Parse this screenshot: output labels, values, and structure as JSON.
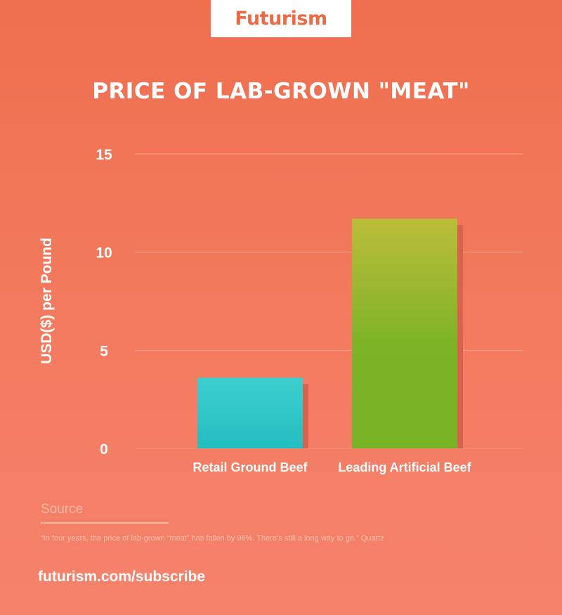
{
  "brand": {
    "logo_text": "Futurism"
  },
  "colors": {
    "accent": "#ee6a44",
    "bar_retail_top": "#3ccfd0",
    "bar_retail_bottom": "#25bdc0",
    "bar_artificial_top": "#bbbd3a",
    "bar_artificial_bottom": "#78b225",
    "shadow": "#d9624f",
    "grid": "#f6a591"
  },
  "chart_data": {
    "type": "bar",
    "title": "PRICE OF LAB-GROWN \"MEAT\"",
    "ylabel": "USD($) per Pound",
    "xlabel": "",
    "categories": [
      "Retail Ground Beef",
      "Leading Artificial Beef"
    ],
    "values": [
      3.6,
      11.7
    ],
    "ylim": [
      0,
      15
    ],
    "yticks": [
      0,
      5,
      10,
      15
    ],
    "grid": true,
    "legend": "none"
  },
  "source": {
    "label": "Source",
    "quote": "“In four years, the price of lab-grown “meat” has fallen by 96%. There’s still a long way to go.” Quartz"
  },
  "footer": {
    "url": "futurism.com/subscribe"
  }
}
